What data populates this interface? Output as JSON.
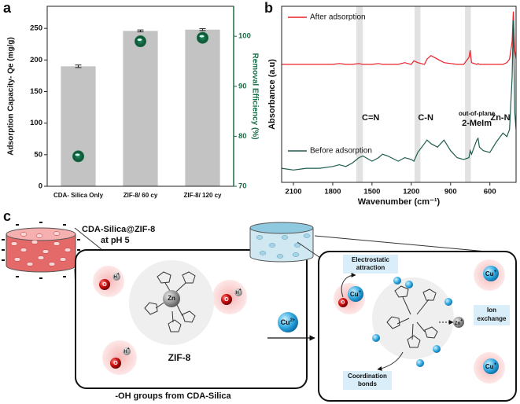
{
  "panel_labels": [
    "a",
    "b",
    "c"
  ],
  "chart_data": [
    {
      "type": "bar",
      "categories": [
        "CDA- Silica Only",
        "ZIF-8/ 60 cy",
        "ZIF-8/ 120 cy"
      ],
      "ylabel": "Adsorption Capacity- Qe (mg/g)",
      "y2label": "Removal Efficiency (%)",
      "ylim": [
        0,
        285
      ],
      "yticks": [
        0,
        50,
        100,
        150,
        200,
        250
      ],
      "y2lim": [
        70,
        106
      ],
      "y2ticks": [
        70,
        80,
        90,
        100
      ],
      "series": [
        {
          "values": [
            190,
            246,
            248
          ],
          "errors": [
            2,
            1.5,
            1.5
          ],
          "color": "#c3c3c3"
        },
        {
          "values": [
            76,
            99,
            99.7
          ],
          "color": "#1b6e46",
          "axis": "y2"
        }
      ]
    },
    {
      "type": "line",
      "xlabel": "Wavenumber (cm⁻¹)",
      "ylabel": "Absorbance (a.u)",
      "xlim": [
        2190,
        400
      ],
      "xticks": [
        2100,
        1800,
        1500,
        1200,
        900,
        600
      ],
      "ylim": [
        0,
        100
      ],
      "x": [
        2190,
        2100,
        2000,
        1900,
        1800,
        1750,
        1700,
        1650,
        1600,
        1570,
        1500,
        1450,
        1420,
        1380,
        1300,
        1250,
        1200,
        1180,
        1150,
        1100,
        1080,
        1050,
        1000,
        950,
        900,
        850,
        800,
        760,
        750,
        740,
        700,
        690,
        680,
        650,
        600,
        550,
        500,
        470,
        450,
        430,
        421,
        410,
        400
      ],
      "series": [
        {
          "name": "After adsorption",
          "color": "#e8202a",
          "values": [
            67,
            67,
            67,
            67,
            67,
            67.5,
            67,
            67,
            67.5,
            67,
            67,
            67.5,
            67,
            67,
            67,
            68,
            67,
            69,
            68,
            67,
            70,
            72,
            70,
            68,
            67.5,
            67,
            67,
            71,
            75,
            68,
            67,
            67.5,
            67,
            67,
            67,
            67,
            67,
            68,
            70,
            80,
            97,
            75,
            70
          ]
        },
        {
          "name": "Before adsorption",
          "color": "#1f5c4f",
          "values": [
            8,
            7,
            8,
            8,
            9,
            10,
            9,
            11,
            14,
            15,
            12,
            14,
            16,
            15,
            12,
            14,
            13,
            12,
            17,
            22,
            24,
            22,
            20,
            24,
            18,
            14,
            13,
            14,
            18,
            16,
            24,
            25,
            20,
            18,
            17,
            23,
            28,
            26,
            30,
            60,
            92,
            40,
            30
          ]
        }
      ],
      "bands": [
        [
          1620,
          1570
        ],
        [
          1175,
          1130
        ],
        [
          790,
          745
        ]
      ],
      "annotations": [
        {
          "text": "C=N",
          "x": 1510
        },
        {
          "text": "C-N",
          "x": 1090
        },
        {
          "text": "out-of-plane",
          "x": 700
        },
        {
          "text": "2-MeIm",
          "x": 700
        },
        {
          "text": "Zn-N",
          "x": 520
        }
      ]
    }
  ],
  "diagram": {
    "material": [
      "CDA-Silica@ZIF-8",
      "at pH 5"
    ],
    "framework": "ZIF-8",
    "groups": "-OH groups from CDA-Silica",
    "ion": {
      "symbol": "Cu",
      "charge": "2+"
    },
    "mechanisms": [
      "Electrostatic",
      "attraction",
      "Ion",
      "exchange",
      "Coordination",
      "bonds"
    ],
    "atoms": {
      "oxygen": "O",
      "hydrogen": "H",
      "plus": "+",
      "copper": "Cu",
      "zinc": "Zn"
    }
  }
}
